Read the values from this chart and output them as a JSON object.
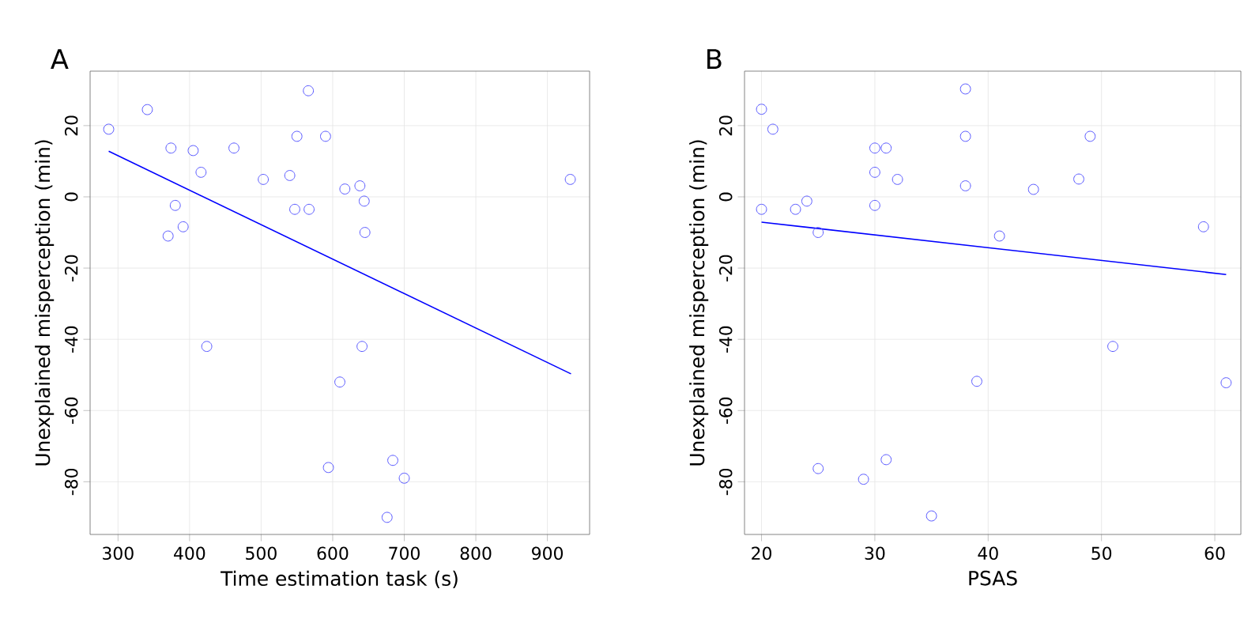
{
  "chart_data": [
    {
      "type": "scatter",
      "title": "A",
      "xlabel": "Time estimation task (s)",
      "ylabel": "Unexplained misperception (min)",
      "xlim": [
        261,
        959
      ],
      "ylim": [
        -94.8,
        35.3
      ],
      "xticks": [
        300,
        400,
        500,
        600,
        700,
        800,
        900
      ],
      "yticks": [
        -80,
        -60,
        -40,
        -20,
        0,
        20
      ],
      "grid": true,
      "marker": "circle",
      "series": [
        {
          "color": "#5555ff",
          "x": [
            287,
            341,
            374,
            405,
            462,
            416,
            503,
            540,
            550,
            590,
            566,
            380,
            391,
            370,
            547,
            567,
            617,
            638,
            644,
            645,
            932,
            424,
            641,
            610,
            594,
            684,
            700,
            676
          ],
          "values": [
            19,
            24.5,
            13.7,
            13,
            13.7,
            6.9,
            4.9,
            6,
            17,
            17,
            29.8,
            -2.4,
            -8.4,
            -11,
            -3.5,
            -3.5,
            2.2,
            3.1,
            -1.2,
            -10,
            4.9,
            -42,
            -42,
            -52,
            -76,
            -74,
            -79,
            -90
          ]
        },
        {
          "type": "line",
          "color": "#0000ff",
          "marker": "none",
          "x": [
            287,
            933
          ],
          "values": [
            12.8,
            -49.7
          ]
        }
      ]
    },
    {
      "type": "scatter",
      "title": "B",
      "xlabel": "PSAS",
      "ylabel": "Unexplained misperception (min)",
      "xlim": [
        18.5,
        62.3
      ],
      "ylim": [
        -94.8,
        35.3
      ],
      "xticks": [
        20,
        30,
        40,
        50,
        60
      ],
      "yticks": [
        -80,
        -60,
        -40,
        -20,
        0,
        20
      ],
      "grid": true,
      "marker": "circle",
      "series": [
        {
          "color": "#5555ff",
          "x": [
            20,
            21,
            20,
            23,
            24,
            25,
            30,
            31,
            30,
            32,
            30,
            38,
            38,
            38,
            41,
            44,
            48,
            49,
            59,
            51,
            39,
            61,
            25,
            29,
            31,
            35
          ],
          "values": [
            24.6,
            19,
            -3.5,
            -3.5,
            -1.2,
            -10,
            13.7,
            13.7,
            6.9,
            4.9,
            -2.4,
            30.3,
            17,
            3.1,
            -11,
            2.1,
            5,
            17,
            -8.4,
            -42,
            -51.8,
            -52.2,
            -76.3,
            -79.3,
            -73.8,
            -89.6
          ]
        },
        {
          "type": "line",
          "color": "#0000ff",
          "marker": "none",
          "x": [
            20,
            61
          ],
          "values": [
            -7.1,
            -21.8
          ]
        }
      ]
    }
  ]
}
